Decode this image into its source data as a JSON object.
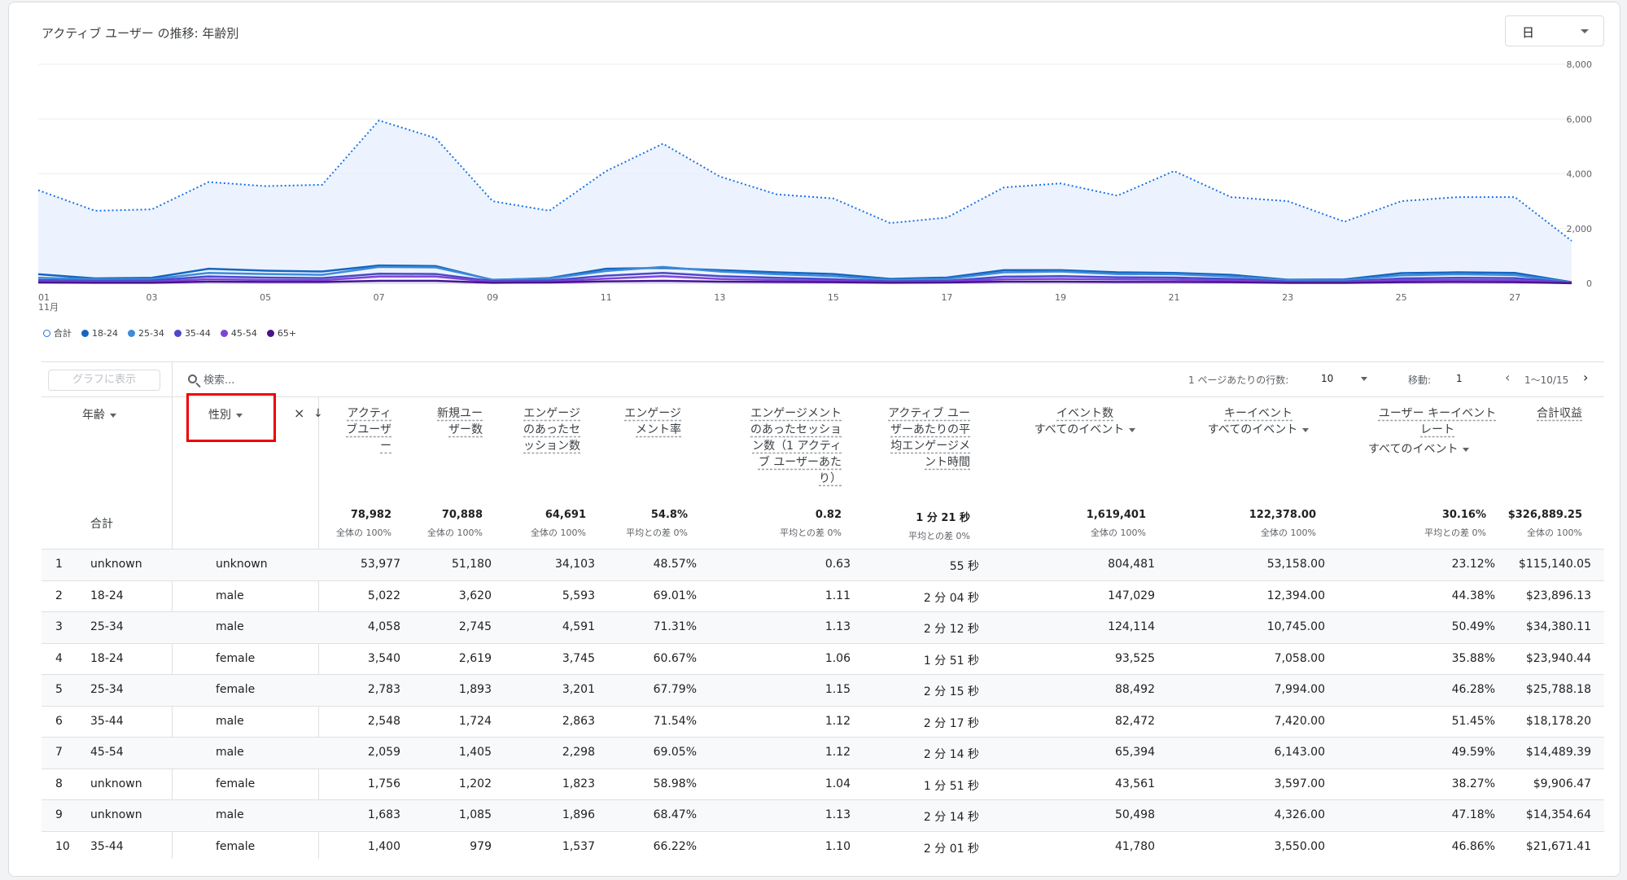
{
  "card": {
    "title": "アクティブ ユーザー の推移: 年齢別",
    "period": "日"
  },
  "chart_data": {
    "type": "line",
    "x": [
      "01",
      "02",
      "03",
      "04",
      "05",
      "06",
      "07",
      "08",
      "09",
      "10",
      "11",
      "12",
      "13",
      "14",
      "15",
      "16",
      "17",
      "18",
      "19",
      "20",
      "21",
      "22",
      "23",
      "24",
      "25",
      "26",
      "27",
      "28"
    ],
    "x_ticks": [
      "01",
      "03",
      "05",
      "07",
      "09",
      "11",
      "13",
      "15",
      "17",
      "19",
      "21",
      "23",
      "25",
      "27"
    ],
    "x_sub": "11月",
    "yticks": [
      "8,000",
      "6,000",
      "4,000",
      "2,000",
      "0"
    ],
    "ylim": [
      0,
      8000
    ],
    "series": [
      {
        "name": "合計",
        "color": "#1a73e8",
        "values": [
          3400,
          2650,
          2700,
          3700,
          3550,
          3600,
          5950,
          5300,
          3000,
          2650,
          4100,
          5100,
          3900,
          3250,
          3100,
          2200,
          2400,
          3500,
          3650,
          3200,
          4100,
          3150,
          3000,
          2250,
          3000,
          3150,
          3150,
          1550
        ]
      },
      {
        "name": "18-24",
        "color": "#1565c0",
        "values": [
          330,
          180,
          200,
          530,
          460,
          430,
          650,
          630,
          120,
          190,
          530,
          560,
          480,
          400,
          340,
          160,
          210,
          480,
          480,
          400,
          380,
          310,
          130,
          140,
          370,
          400,
          380,
          40
        ]
      },
      {
        "name": "25-34",
        "color": "#3d8bd9",
        "values": [
          200,
          150,
          150,
          380,
          340,
          310,
          600,
          580,
          130,
          170,
          450,
          600,
          430,
          330,
          260,
          120,
          160,
          400,
          430,
          340,
          330,
          250,
          110,
          110,
          290,
          330,
          300,
          30
        ]
      },
      {
        "name": "35-44",
        "color": "#4b49c8",
        "values": [
          120,
          90,
          100,
          250,
          210,
          190,
          350,
          340,
          80,
          100,
          280,
          380,
          260,
          200,
          150,
          70,
          90,
          240,
          260,
          220,
          210,
          160,
          60,
          60,
          180,
          200,
          190,
          20
        ]
      },
      {
        "name": "45-54",
        "color": "#7e44d8",
        "values": [
          60,
          50,
          50,
          150,
          120,
          110,
          250,
          250,
          50,
          60,
          170,
          260,
          160,
          120,
          90,
          40,
          60,
          150,
          160,
          140,
          130,
          100,
          40,
          40,
          110,
          120,
          110,
          15
        ]
      },
      {
        "name": "65+",
        "color": "#4a148c",
        "values": [
          30,
          20,
          20,
          60,
          50,
          50,
          90,
          90,
          20,
          30,
          70,
          90,
          60,
          50,
          40,
          20,
          30,
          60,
          60,
          50,
          50,
          40,
          15,
          15,
          40,
          50,
          40,
          5
        ]
      }
    ]
  },
  "table": {
    "graph_button": "グラフに表示",
    "search_placeholder": "検索...",
    "rows_per_page_label": "1 ページあたりの行数:",
    "rows_per_page": "10",
    "goto_label": "移動:",
    "goto_value": "1",
    "range": "1〜10/15",
    "headers": {
      "age": "年齢",
      "gender": "性別",
      "active": "アクティ|ブユーザ|ー",
      "newusers": "新規ユー|ザー数",
      "engaged": "エンゲージ|のあったセ|ッション数",
      "engrate": "エンゲージ|メント率",
      "engper": "エンゲージメント|のあったセッショ|ン数（1 アクティ|ブ ユーザーあた|り）",
      "avgtime": "アクティブ ユー|ザーあたりの平|均エンゲージメ|ント時間",
      "events": "イベント数",
      "events_sub": "すべてのイベント",
      "keyev": "キーイベント",
      "keyev_sub": "すべてのイベント",
      "ukrate": "ユーザー キーイベント|レート",
      "ukrate_sub": "すべてのイベント",
      "revenue": "合計収益"
    },
    "totals": {
      "label": "合計",
      "active": "78,982",
      "active_sub": "全体の 100%",
      "newusers": "70,888",
      "newusers_sub": "全体の 100%",
      "engaged": "64,691",
      "engaged_sub": "全体の 100%",
      "engrate": "54.8%",
      "engrate_sub": "平均との差 0%",
      "engper": "0.82",
      "engper_sub": "平均との差 0%",
      "avgtime": "1 分 21 秒",
      "avgtime_sub": "平均との差 0%",
      "events": "1,619,401",
      "events_sub": "全体の 100%",
      "keyev": "122,378.00",
      "keyev_sub": "全体の 100%",
      "ukrate": "30.16%",
      "ukrate_sub": "平均との差 0%",
      "revenue": "$326,889.25",
      "revenue_sub": "全体の 100%"
    },
    "rows": [
      {
        "idx": "1",
        "age": "unknown",
        "gender": "unknown",
        "active": "53,977",
        "newusers": "51,180",
        "engaged": "34,103",
        "engrate": "48.57%",
        "engper": "0.63",
        "avgtime": "55 秒",
        "events": "804,481",
        "keyev": "53,158.00",
        "ukrate": "23.12%",
        "revenue": "$115,140.05"
      },
      {
        "idx": "2",
        "age": "18-24",
        "gender": "male",
        "active": "5,022",
        "newusers": "3,620",
        "engaged": "5,593",
        "engrate": "69.01%",
        "engper": "1.11",
        "avgtime": "2 分 04 秒",
        "events": "147,029",
        "keyev": "12,394.00",
        "ukrate": "44.38%",
        "revenue": "$23,896.13"
      },
      {
        "idx": "3",
        "age": "25-34",
        "gender": "male",
        "active": "4,058",
        "newusers": "2,745",
        "engaged": "4,591",
        "engrate": "71.31%",
        "engper": "1.13",
        "avgtime": "2 分 12 秒",
        "events": "124,114",
        "keyev": "10,745.00",
        "ukrate": "50.49%",
        "revenue": "$34,380.11"
      },
      {
        "idx": "4",
        "age": "18-24",
        "gender": "female",
        "active": "3,540",
        "newusers": "2,619",
        "engaged": "3,745",
        "engrate": "60.67%",
        "engper": "1.06",
        "avgtime": "1 分 51 秒",
        "events": "93,525",
        "keyev": "7,058.00",
        "ukrate": "35.88%",
        "revenue": "$23,940.44"
      },
      {
        "idx": "5",
        "age": "25-34",
        "gender": "female",
        "active": "2,783",
        "newusers": "1,893",
        "engaged": "3,201",
        "engrate": "67.79%",
        "engper": "1.15",
        "avgtime": "2 分 15 秒",
        "events": "88,492",
        "keyev": "7,994.00",
        "ukrate": "46.28%",
        "revenue": "$25,788.18"
      },
      {
        "idx": "6",
        "age": "35-44",
        "gender": "male",
        "active": "2,548",
        "newusers": "1,724",
        "engaged": "2,863",
        "engrate": "71.54%",
        "engper": "1.12",
        "avgtime": "2 分 17 秒",
        "events": "82,472",
        "keyev": "7,420.00",
        "ukrate": "51.45%",
        "revenue": "$18,178.20"
      },
      {
        "idx": "7",
        "age": "45-54",
        "gender": "male",
        "active": "2,059",
        "newusers": "1,405",
        "engaged": "2,298",
        "engrate": "69.05%",
        "engper": "1.12",
        "avgtime": "2 分 14 秒",
        "events": "65,394",
        "keyev": "6,143.00",
        "ukrate": "49.59%",
        "revenue": "$14,489.39"
      },
      {
        "idx": "8",
        "age": "unknown",
        "gender": "female",
        "active": "1,756",
        "newusers": "1,202",
        "engaged": "1,823",
        "engrate": "58.98%",
        "engper": "1.04",
        "avgtime": "1 分 51 秒",
        "events": "43,561",
        "keyev": "3,597.00",
        "ukrate": "38.27%",
        "revenue": "$9,906.47"
      },
      {
        "idx": "9",
        "age": "unknown",
        "gender": "male",
        "active": "1,683",
        "newusers": "1,085",
        "engaged": "1,896",
        "engrate": "68.47%",
        "engper": "1.13",
        "avgtime": "2 分 14 秒",
        "events": "50,498",
        "keyev": "4,326.00",
        "ukrate": "47.18%",
        "revenue": "$14,354.64"
      },
      {
        "idx": "10",
        "age": "35-44",
        "gender": "female",
        "active": "1,400",
        "newusers": "979",
        "engaged": "1,537",
        "engrate": "66.22%",
        "engper": "1.10",
        "avgtime": "2 分 01 秒",
        "events": "41,780",
        "keyev": "3,550.00",
        "ukrate": "46.86%",
        "revenue": "$21,671.41"
      }
    ]
  }
}
